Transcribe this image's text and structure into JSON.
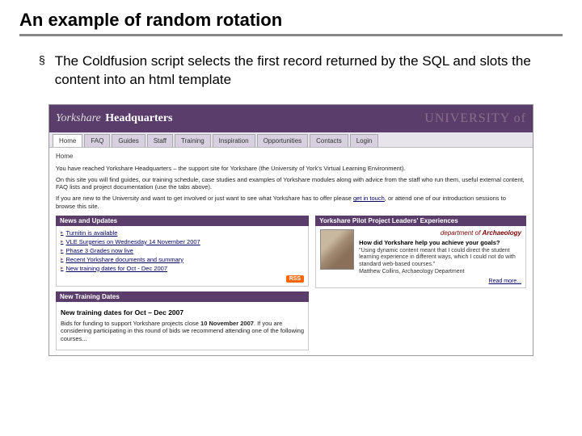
{
  "slide": {
    "title": "An example of random rotation",
    "bullet": "The Coldfusion script selects the first record returned by the SQL and slots the content into an html template"
  },
  "header": {
    "logo_prefix": "Yorkshare",
    "logo_main": "Headquarters",
    "watermark": "UNIVERSITY of"
  },
  "tabs": [
    {
      "label": "Home",
      "active": true
    },
    {
      "label": "FAQ",
      "active": false
    },
    {
      "label": "Guides",
      "active": false
    },
    {
      "label": "Staff",
      "active": false
    },
    {
      "label": "Training",
      "active": false
    },
    {
      "label": "Inspiration",
      "active": false
    },
    {
      "label": "Opportunities",
      "active": false
    },
    {
      "label": "Contacts",
      "active": false
    },
    {
      "label": "Login",
      "active": false
    }
  ],
  "breadcrumb": "Home",
  "intro": {
    "p1": "You have reached Yorkshare Headquarters – the support site for Yorkshare (the University of York's Virtual Learning Environment).",
    "p2": "On this site you will find guides, our training schedule, case studies and examples of Yorkshare modules along with advice from the staff who run them, useful external content, FAQ lists and project documentation (use the tabs above).",
    "p3_a": "If you are new to the University and want to get involved or just want to see what Yorkshare has to offer please ",
    "p3_link": "get in touch",
    "p3_b": ", or attend one of our introduction sessions to browse this site."
  },
  "news": {
    "heading": "News and Updates",
    "items": [
      "Turnitin is available",
      "VLE Surgeries on Wednesday 14 November 2007",
      "Phase 3 Grades now live",
      "Recent Yorkshare documents and summary",
      "New training dates for Oct - Dec 2007"
    ],
    "rss_label": "RSS"
  },
  "training": {
    "heading": "New Training Dates",
    "title": "New training dates for Oct – Dec 2007",
    "body_a": "Bids for funding to support Yorkshare projects close ",
    "body_date": "10 November 2007",
    "body_b": ". If you are considering participating in this round of bids we recommend attending one of the following courses..."
  },
  "experiences": {
    "heading": "Yorkshare Pilot Project Leaders' Experiences",
    "dept_prefix": "department of",
    "dept": "Archaeology",
    "question": "How did Yorkshare help you achieve your goals?",
    "answer": "\"Using dynamic content meant that I could direct the student learning experience in different ways, which I could not do with standard web-based courses.\"",
    "attribution": "Matthew Collins, Archaeology Department",
    "readmore": "Read more..."
  }
}
